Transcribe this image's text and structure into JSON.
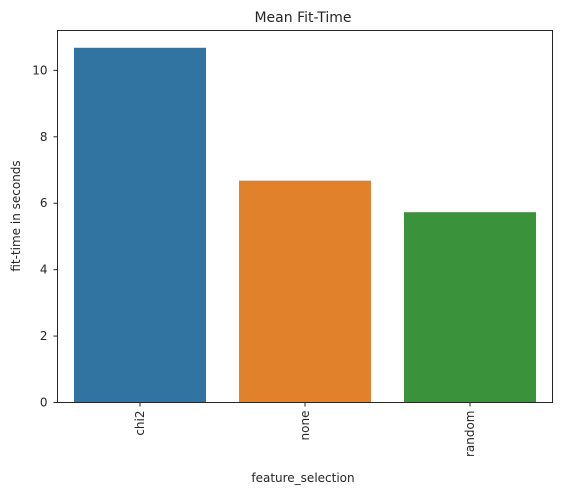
{
  "chart_data": {
    "type": "bar",
    "title": "Mean Fit-Time",
    "xlabel": "feature_selection",
    "ylabel": "fit-time in seconds",
    "categories": [
      "chi2",
      "none",
      "random"
    ],
    "values": [
      10.68,
      6.68,
      5.73
    ],
    "colors": [
      "#3274a1",
      "#e1812c",
      "#3a923a"
    ],
    "ylim": [
      0,
      11.2
    ],
    "yticks": [
      0,
      2,
      4,
      6,
      8,
      10
    ],
    "ytick_labels": [
      "0",
      "2",
      "4",
      "6",
      "8",
      "10"
    ],
    "grid": false,
    "legend": "none",
    "xtick_rotation": "vertical"
  }
}
